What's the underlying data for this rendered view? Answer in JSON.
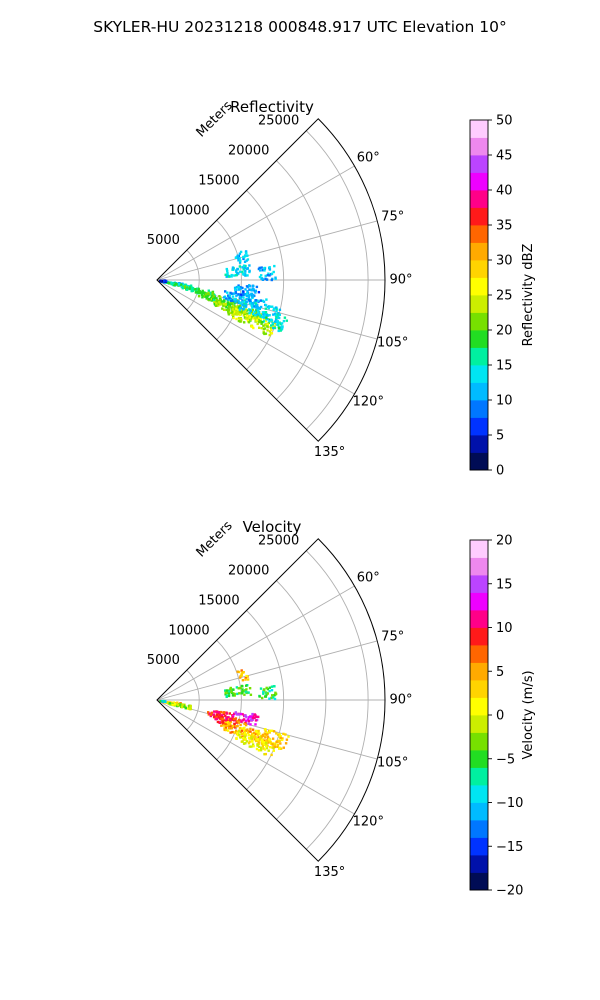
{
  "figure": {
    "title": "SKYLER-HU  20231218  000848.917 UTC Elevation 10°"
  },
  "chart_data": [
    {
      "type": "polar-sector-scatter",
      "title": "Reflectivity",
      "radial_label": "Meters",
      "radial_ticks": [
        5000,
        10000,
        15000,
        20000,
        25000
      ],
      "radial_range": [
        0,
        27000
      ],
      "angle_ticks": [
        "60°",
        "75°",
        "90°",
        "105°",
        "120°",
        "135°"
      ],
      "angle_tick_values": [
        60,
        75,
        90,
        105,
        120,
        135
      ],
      "angle_range": [
        45,
        135
      ],
      "grid": true,
      "colorbar": {
        "label": "Reflectivity dBZ",
        "range": [
          0,
          50
        ],
        "ticks": [
          "0",
          "5",
          "10",
          "15",
          "20",
          "25",
          "30",
          "35",
          "40",
          "45",
          "50"
        ],
        "tick_values": [
          0,
          5,
          10,
          15,
          20,
          25,
          30,
          35,
          40,
          45,
          50
        ],
        "colors": [
          "#000c55",
          "#0011aa",
          "#0033ff",
          "#0077ff",
          "#00bbff",
          "#00e5f2",
          "#00f0a0",
          "#22dd22",
          "#77e000",
          "#ccee00",
          "#ffff00",
          "#ffd400",
          "#ffaa00",
          "#ff6600",
          "#ff1a1a",
          "#ff0088",
          "#ee00ff",
          "#bb44ff",
          "#ee88ee",
          "#ffccff"
        ]
      },
      "echoes": [
        {
          "az": 98,
          "range": [
            500,
            3000
          ],
          "value": 12
        },
        {
          "az": 101,
          "range": [
            1000,
            4000
          ],
          "value": 16
        },
        {
          "az": 104,
          "range": [
            3000,
            7000
          ],
          "value": 18
        },
        {
          "az": 107,
          "range": [
            5000,
            10000
          ],
          "value": 20
        },
        {
          "az": 110,
          "range": [
            7000,
            13000
          ],
          "value": 22
        },
        {
          "az": 113,
          "range": [
            9000,
            15000
          ],
          "value": 24
        },
        {
          "az": 102,
          "range": [
            8000,
            13000
          ],
          "value": 11
        },
        {
          "az": 106,
          "range": [
            10000,
            15000
          ],
          "value": 13
        },
        {
          "az": 109,
          "range": [
            13000,
            16000
          ],
          "value": 15
        },
        {
          "az": 96,
          "range": [
            9000,
            12000
          ],
          "value": 10
        },
        {
          "az": 86,
          "range": [
            12000,
            14000
          ],
          "value": 11
        },
        {
          "az": 83,
          "range": [
            8000,
            11000
          ],
          "value": 13
        },
        {
          "az": 74,
          "range": [
            9500,
            11000
          ],
          "value": 12
        },
        {
          "az": 91,
          "range": [
            300,
            1000
          ],
          "value": 5
        },
        {
          "az": 86,
          "range": [
            200,
            800
          ],
          "value": 3
        }
      ]
    },
    {
      "type": "polar-sector-scatter",
      "title": "Velocity",
      "radial_label": "Meters",
      "radial_ticks": [
        5000,
        10000,
        15000,
        20000,
        25000
      ],
      "radial_range": [
        0,
        27000
      ],
      "angle_ticks": [
        "60°",
        "75°",
        "90°",
        "105°",
        "120°",
        "135°"
      ],
      "angle_tick_values": [
        60,
        75,
        90,
        105,
        120,
        135
      ],
      "angle_range": [
        45,
        135
      ],
      "grid": true,
      "colorbar": {
        "label": "Velocity (m/s)",
        "range": [
          -20,
          20
        ],
        "ticks": [
          "−20",
          "−15",
          "−10",
          "−5",
          "0",
          "5",
          "10",
          "15",
          "20"
        ],
        "tick_values": [
          -20,
          -15,
          -10,
          -5,
          0,
          5,
          10,
          15,
          20
        ],
        "colors": [
          "#000c55",
          "#0011aa",
          "#0033ff",
          "#0077ff",
          "#00bbff",
          "#00e5f2",
          "#00f0a0",
          "#22dd22",
          "#77e000",
          "#ccee00",
          "#ffff00",
          "#ffd400",
          "#ffaa00",
          "#ff6600",
          "#ff1a1a",
          "#ff0088",
          "#ee00ff",
          "#bb44ff",
          "#ee88ee",
          "#ffccff"
        ]
      },
      "echoes": [
        {
          "az": 98,
          "range": [
            500,
            3000
          ],
          "value": 4
        },
        {
          "az": 101,
          "range": [
            1000,
            4000
          ],
          "value": -2
        },
        {
          "az": 103,
          "range": [
            6000,
            9000
          ],
          "value": 9
        },
        {
          "az": 101,
          "range": [
            9000,
            12000
          ],
          "value": 13
        },
        {
          "az": 106,
          "range": [
            7000,
            11000
          ],
          "value": 8
        },
        {
          "az": 110,
          "range": [
            8000,
            14000
          ],
          "value": 4
        },
        {
          "az": 113,
          "range": [
            10000,
            15000
          ],
          "value": 1
        },
        {
          "az": 108,
          "range": [
            13000,
            16000
          ],
          "value": 3
        },
        {
          "az": 86,
          "range": [
            12000,
            14000
          ],
          "value": -6
        },
        {
          "az": 83,
          "range": [
            8000,
            11000
          ],
          "value": -5
        },
        {
          "az": 73,
          "range": [
            10000,
            11000
          ],
          "value": 4
        },
        {
          "az": 92,
          "range": [
            300,
            1000
          ],
          "value": -8
        }
      ]
    }
  ]
}
